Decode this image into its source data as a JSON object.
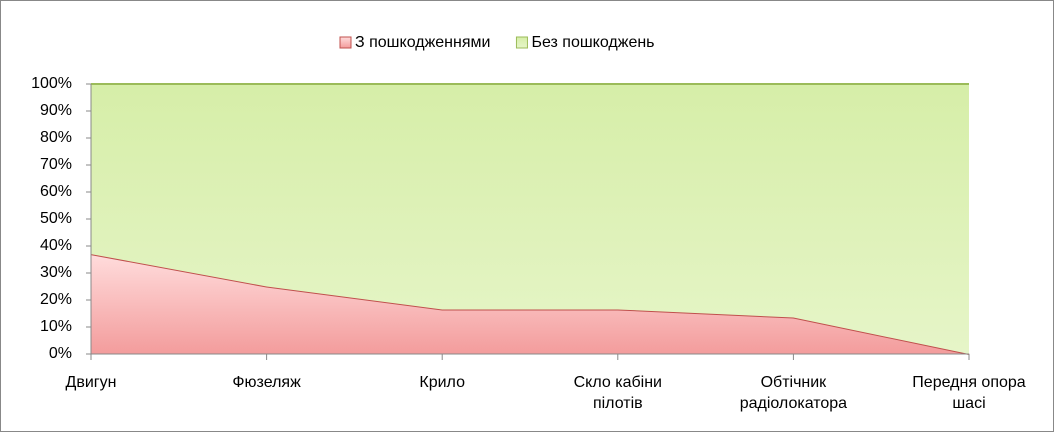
{
  "chart_data": {
    "type": "area_stacked",
    "categories": [
      "Двигун",
      "Фюзеляж",
      "Крило",
      "Скло кабіни пілотів",
      "Обтічник радіолокатора",
      "Передня опора шасі"
    ],
    "series": [
      {
        "name": "З пошкодженнями",
        "color": "#f4a6a6",
        "values": [
          37,
          25,
          16.5,
          16.5,
          13.5,
          0
        ]
      },
      {
        "name": "Без пошкоджень",
        "color": "#d9f0b0",
        "values": [
          63,
          75,
          83.5,
          83.5,
          86.5,
          100
        ]
      }
    ],
    "ylim": [
      0,
      100
    ],
    "yticks": [
      {
        "value": 0,
        "label": "0%"
      },
      {
        "value": 10,
        "label": "10%"
      },
      {
        "value": 20,
        "label": "20%"
      },
      {
        "value": 30,
        "label": "30%"
      },
      {
        "value": 40,
        "label": "40%"
      },
      {
        "value": 50,
        "label": "50%"
      },
      {
        "value": 60,
        "label": "60%"
      },
      {
        "value": 70,
        "label": "70%"
      },
      {
        "value": 80,
        "label": "80%"
      },
      {
        "value": 90,
        "label": "90%"
      },
      {
        "value": 100,
        "label": "100%"
      }
    ],
    "legend": "top"
  }
}
